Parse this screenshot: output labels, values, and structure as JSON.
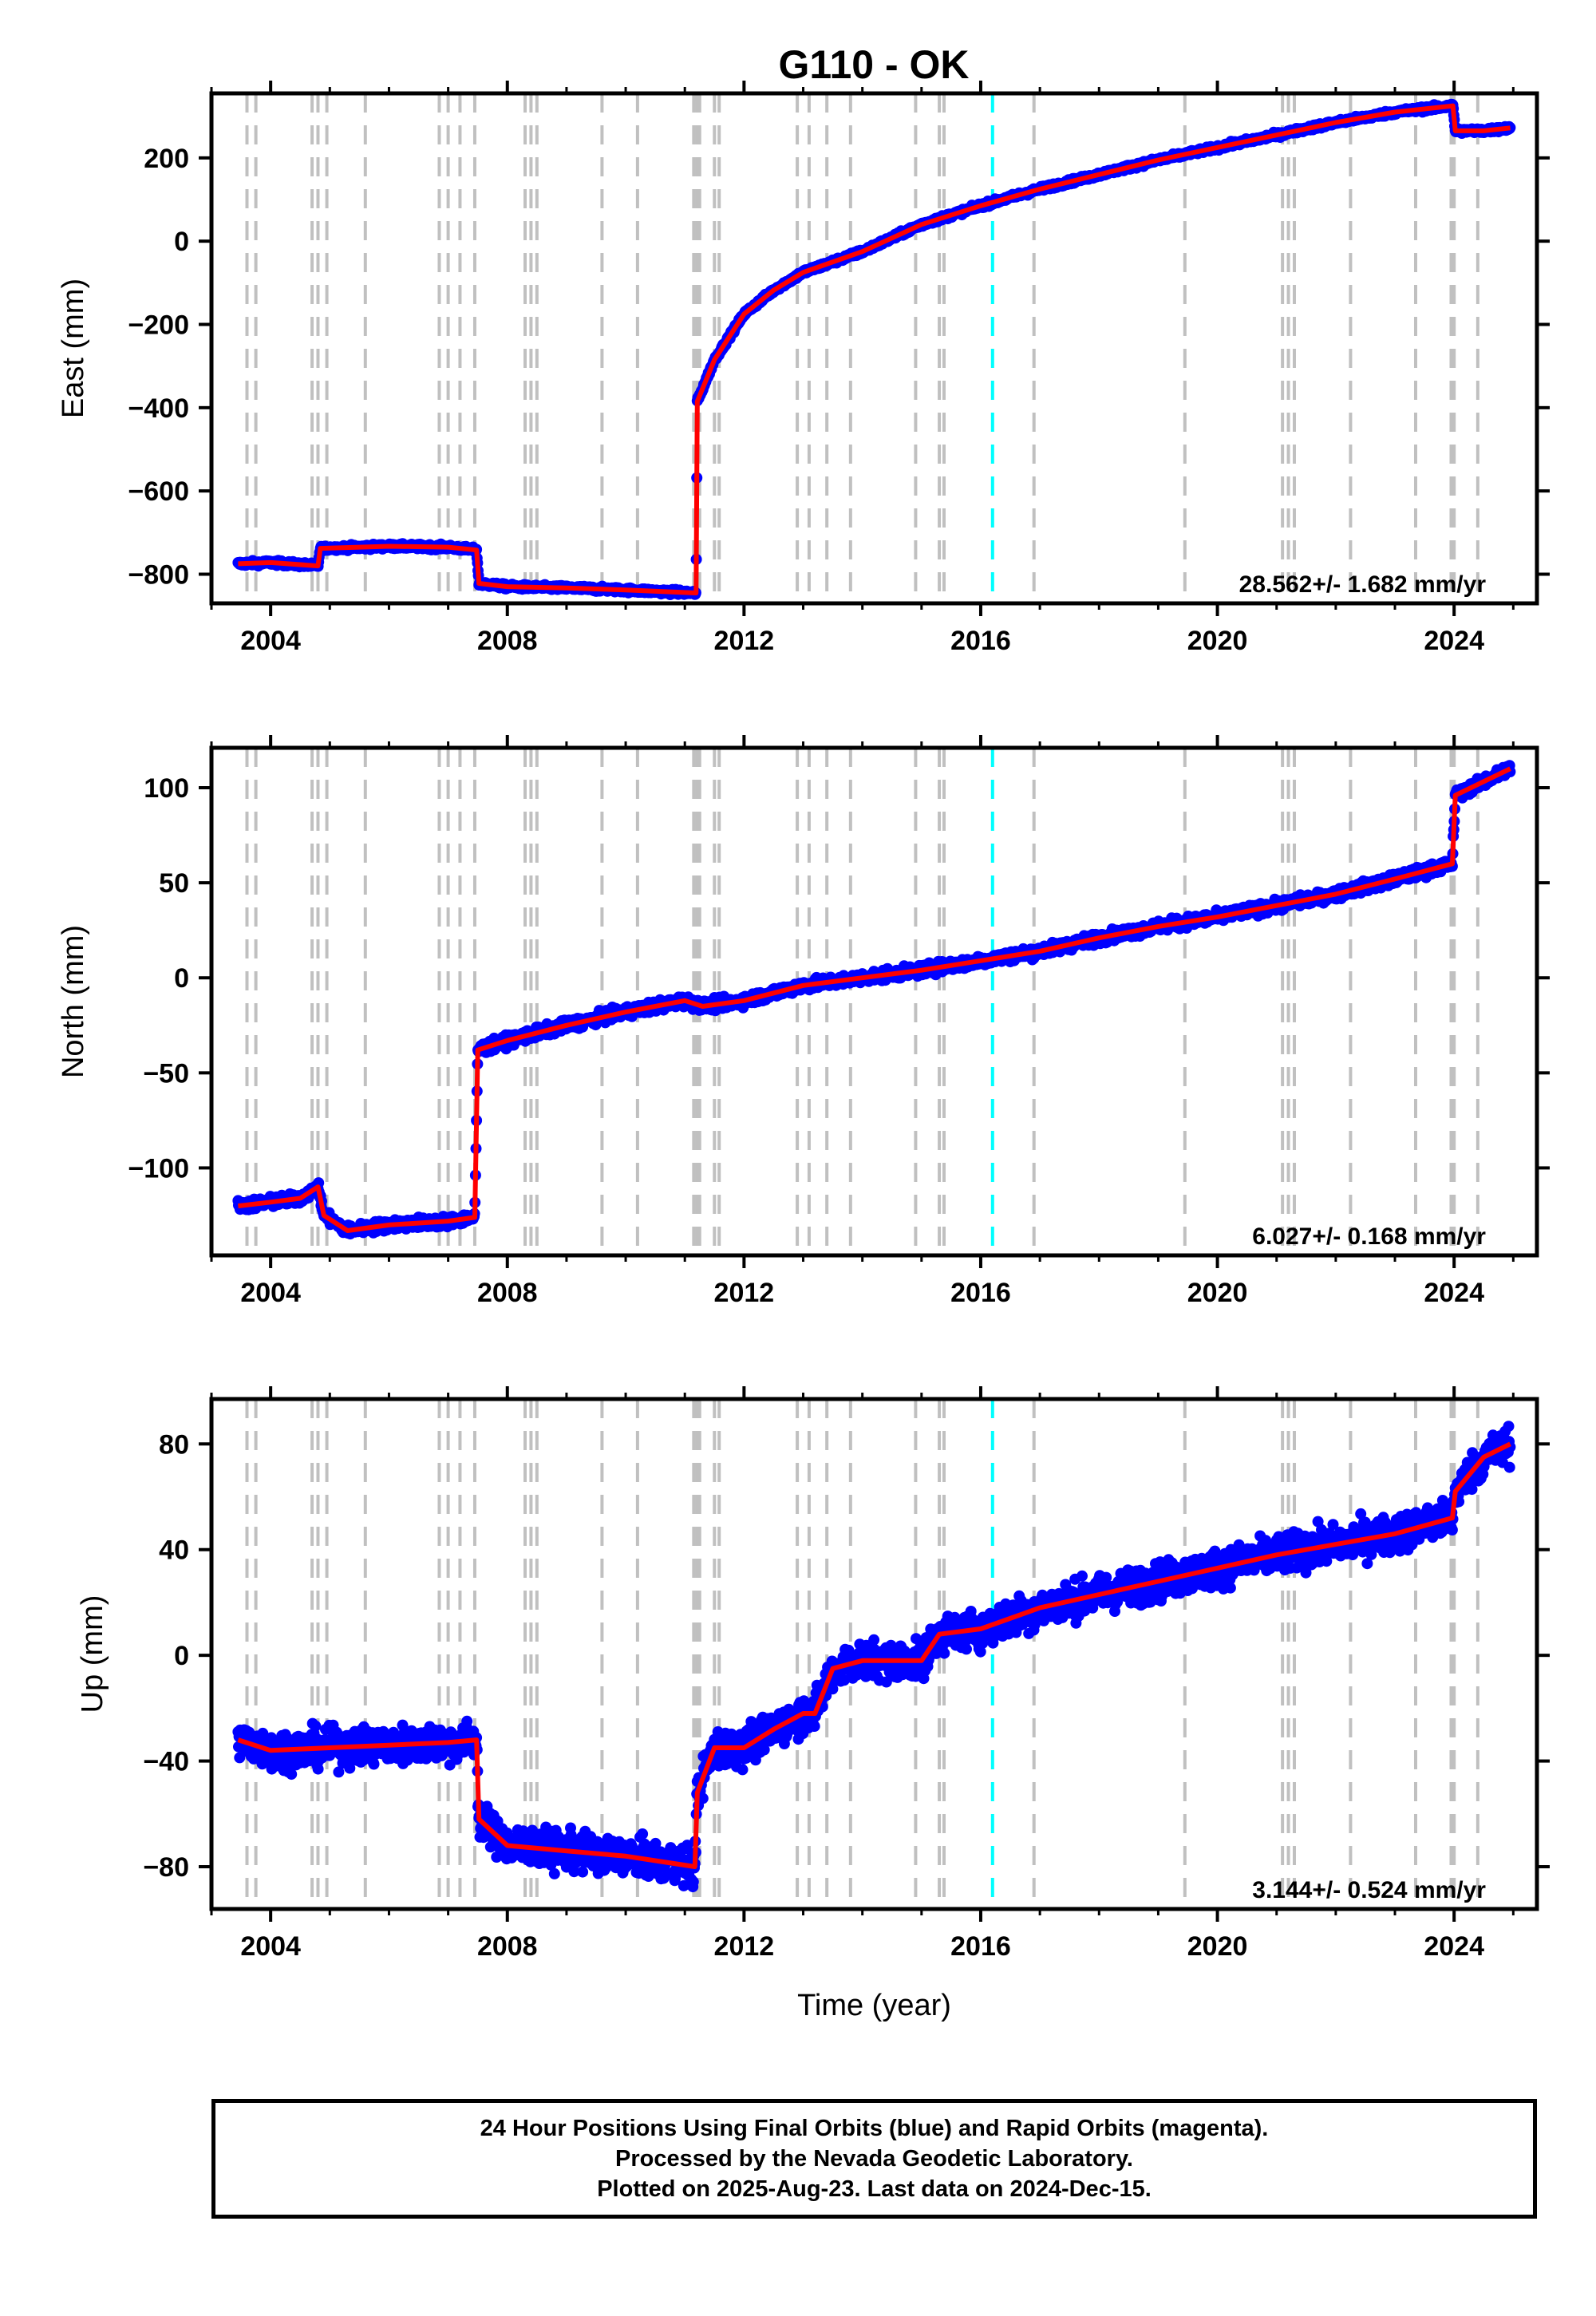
{
  "title": "G110 - OK",
  "footer": {
    "line1": "24 Hour Positions Using Final Orbits (blue) and Rapid Orbits (magenta).",
    "line2": "Processed by the Nevada Geodetic Laboratory.",
    "line3": "Plotted on 2025-Aug-23. Last data on 2024-Dec-15."
  },
  "colors": {
    "data_points": "#0000ff",
    "model_line": "#ff0000",
    "event_lines": "#c0c0c0",
    "marker_line": "#00ffff"
  },
  "chart_data": [
    {
      "type": "scatter",
      "ylabel": "East (mm)",
      "xlabel": "",
      "xlim": [
        2003.0,
        2025.4
      ],
      "ylim": [
        -870,
        355
      ],
      "xticks": [
        2004,
        2008,
        2012,
        2016,
        2020,
        2024
      ],
      "yticks": [
        -800,
        -600,
        -400,
        -200,
        0,
        200
      ],
      "rate_label": "28.562+/- 1.682 mm/yr",
      "noise": 4,
      "series": [
        {
          "x": [
            2003.45,
            2004.0,
            2004.8,
            2004.84,
            2006.0,
            2007.0,
            2007.48,
            2007.52,
            2008.0,
            2009.0,
            2010.0,
            2011.19,
            2011.21,
            2011.5,
            2012.0,
            2012.5,
            2013.0,
            2014.0,
            2015.0,
            2016.0,
            2017.0,
            2018.0,
            2019.0,
            2020.0,
            2021.0,
            2022.0,
            2023.0,
            2023.98,
            2024.02,
            2024.5,
            2024.95
          ],
          "y": [
            -775,
            -772,
            -780,
            -738,
            -733,
            -735,
            -742,
            -822,
            -830,
            -833,
            -838,
            -845,
            -385,
            -285,
            -175,
            -118,
            -75,
            -25,
            40,
            85,
            125,
            160,
            195,
            225,
            255,
            285,
            310,
            325,
            265,
            265,
            272
          ]
        }
      ]
    },
    {
      "type": "scatter",
      "ylabel": "North (mm)",
      "xlabel": "",
      "xlim": [
        2003.0,
        2025.4
      ],
      "ylim": [
        -146,
        121
      ],
      "xticks": [
        2004,
        2008,
        2012,
        2016,
        2020,
        2024
      ],
      "yticks": [
        -100,
        -50,
        0,
        50,
        100
      ],
      "rate_label": "6.027+/- 0.168 mm/yr",
      "noise": 2,
      "series": [
        {
          "x": [
            2003.45,
            2004.0,
            2004.5,
            2004.8,
            2004.9,
            2005.3,
            2006.0,
            2007.0,
            2007.45,
            2007.5,
            2008.0,
            2009.0,
            2010.0,
            2011.0,
            2011.3,
            2012.0,
            2013.0,
            2014.0,
            2015.0,
            2016.0,
            2017.0,
            2018.0,
            2019.0,
            2020.0,
            2021.0,
            2022.0,
            2023.0,
            2023.97,
            2024.02,
            2024.95
          ],
          "y": [
            -120,
            -118,
            -116,
            -110,
            -125,
            -133,
            -130,
            -128,
            -126,
            -38,
            -33,
            -25,
            -18,
            -12,
            -15,
            -12,
            -4,
            0,
            4,
            9,
            14,
            21,
            27,
            32,
            38,
            44,
            52,
            60,
            96,
            110
          ]
        }
      ]
    },
    {
      "type": "scatter",
      "ylabel": "Up (mm)",
      "xlabel": "Time (year)",
      "xlim": [
        2003.0,
        2025.4
      ],
      "ylim": [
        -96,
        97
      ],
      "xticks": [
        2004,
        2008,
        2012,
        2016,
        2020,
        2024
      ],
      "yticks": [
        -80,
        -40,
        0,
        40,
        80
      ],
      "rate_label": "3.144+/- 0.524 mm/yr",
      "noise": 5,
      "series": [
        {
          "x": [
            2003.45,
            2004.0,
            2005.0,
            2006.0,
            2007.0,
            2007.48,
            2007.52,
            2008.0,
            2009.0,
            2010.0,
            2011.17,
            2011.21,
            2011.5,
            2012.0,
            2012.5,
            2013.0,
            2013.2,
            2013.5,
            2014.0,
            2015.0,
            2015.3,
            2016.0,
            2017.0,
            2018.0,
            2019.0,
            2020.0,
            2021.0,
            2022.0,
            2023.0,
            2023.97,
            2024.02,
            2024.5,
            2024.95
          ],
          "y": [
            -32,
            -36,
            -35,
            -34,
            -33,
            -32,
            -62,
            -72,
            -74,
            -76,
            -80,
            -52,
            -35,
            -35,
            -28,
            -22,
            -22,
            -5,
            -2,
            -2,
            8,
            10,
            18,
            23,
            28,
            33,
            38,
            42,
            46,
            52,
            62,
            75,
            80
          ]
        }
      ]
    }
  ],
  "event_lines": [
    2003.6,
    2003.75,
    2004.7,
    2004.8,
    2004.95,
    2005.6,
    2006.85,
    2007.0,
    2007.2,
    2007.45,
    2008.3,
    2008.4,
    2008.5,
    2009.6,
    2010.2,
    2011.15,
    2011.2,
    2011.25,
    2011.5,
    2011.58,
    2012.9,
    2013.1,
    2013.4,
    2013.8,
    2014.9,
    2015.3,
    2015.38,
    2016.9,
    2019.45,
    2021.1,
    2021.2,
    2021.3,
    2022.25,
    2023.35,
    2023.95,
    2024.0,
    2024.4
  ],
  "marker_line": 2016.2
}
